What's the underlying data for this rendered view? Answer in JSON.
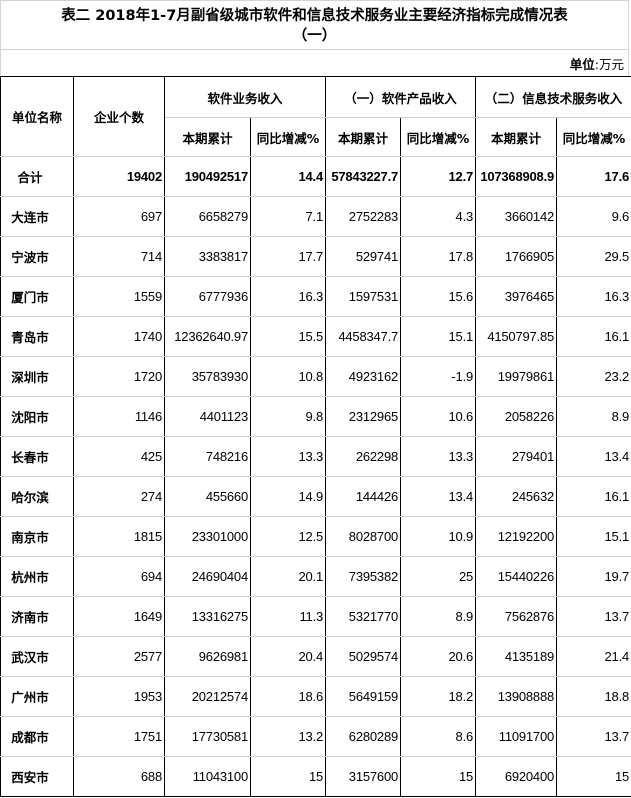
{
  "title": {
    "line1": "表二  2018年1-7月副省级城市软件和信息技术服务业主要经济指标完成情况表",
    "line2": "（一）"
  },
  "unit": {
    "label": "单位",
    "value": ":万元"
  },
  "headers": {
    "unit_name": "单位名称",
    "enterprise_count": "企业个数",
    "software_revenue": "软件业务收入",
    "software_products": "（一）软件产品收入",
    "it_services": "（二）信息技术服务收入",
    "cumulative": "本期累计",
    "yoy": "同比增减%"
  },
  "rows": [
    {
      "name": "合计",
      "count": "19402",
      "sw": "190492517",
      "sw_yoy": "14.4",
      "prod": "57843227.7",
      "prod_yoy": "12.7",
      "it": "107368908.9",
      "it_yoy": "17.6"
    },
    {
      "name": "大连市",
      "count": "697",
      "sw": "6658279",
      "sw_yoy": "7.1",
      "prod": "2752283",
      "prod_yoy": "4.3",
      "it": "3660142",
      "it_yoy": "9.6"
    },
    {
      "name": "宁波市",
      "count": "714",
      "sw": "3383817",
      "sw_yoy": "17.7",
      "prod": "529741",
      "prod_yoy": "17.8",
      "it": "1766905",
      "it_yoy": "29.5"
    },
    {
      "name": "厦门市",
      "count": "1559",
      "sw": "6777936",
      "sw_yoy": "16.3",
      "prod": "1597531",
      "prod_yoy": "15.6",
      "it": "3976465",
      "it_yoy": "16.3"
    },
    {
      "name": "青岛市",
      "count": "1740",
      "sw": "12362640.97",
      "sw_yoy": "15.5",
      "prod": "4458347.7",
      "prod_yoy": "15.1",
      "it": "4150797.85",
      "it_yoy": "16.1"
    },
    {
      "name": "深圳市",
      "count": "1720",
      "sw": "35783930",
      "sw_yoy": "10.8",
      "prod": "4923162",
      "prod_yoy": "-1.9",
      "it": "19979861",
      "it_yoy": "23.2"
    },
    {
      "name": "沈阳市",
      "count": "1146",
      "sw": "4401123",
      "sw_yoy": "9.8",
      "prod": "2312965",
      "prod_yoy": "10.6",
      "it": "2058226",
      "it_yoy": "8.9"
    },
    {
      "name": "长春市",
      "count": "425",
      "sw": "748216",
      "sw_yoy": "13.3",
      "prod": "262298",
      "prod_yoy": "13.3",
      "it": "279401",
      "it_yoy": "13.4"
    },
    {
      "name": "哈尔滨",
      "count": "274",
      "sw": "455660",
      "sw_yoy": "14.9",
      "prod": "144426",
      "prod_yoy": "13.4",
      "it": "245632",
      "it_yoy": "16.1"
    },
    {
      "name": "南京市",
      "count": "1815",
      "sw": "23301000",
      "sw_yoy": "12.5",
      "prod": "8028700",
      "prod_yoy": "10.9",
      "it": "12192200",
      "it_yoy": "15.1"
    },
    {
      "name": "杭州市",
      "count": "694",
      "sw": "24690404",
      "sw_yoy": "20.1",
      "prod": "7395382",
      "prod_yoy": "25",
      "it": "15440226",
      "it_yoy": "19.7"
    },
    {
      "name": "济南市",
      "count": "1649",
      "sw": "13316275",
      "sw_yoy": "11.3",
      "prod": "5321770",
      "prod_yoy": "8.9",
      "it": "7562876",
      "it_yoy": "13.7"
    },
    {
      "name": "武汉市",
      "count": "2577",
      "sw": "9626981",
      "sw_yoy": "20.4",
      "prod": "5029574",
      "prod_yoy": "20.6",
      "it": "4135189",
      "it_yoy": "21.4"
    },
    {
      "name": "广州市",
      "count": "1953",
      "sw": "20212574",
      "sw_yoy": "18.6",
      "prod": "5649159",
      "prod_yoy": "18.2",
      "it": "13908888",
      "it_yoy": "18.8"
    },
    {
      "name": "成都市",
      "count": "1751",
      "sw": "17730581",
      "sw_yoy": "13.2",
      "prod": "6280289",
      "prod_yoy": "8.6",
      "it": "11091700",
      "it_yoy": "13.7"
    },
    {
      "name": "西安市",
      "count": "688",
      "sw": "11043100",
      "sw_yoy": "15",
      "prod": "3157600",
      "prod_yoy": "15",
      "it": "6920400",
      "it_yoy": "15"
    }
  ]
}
